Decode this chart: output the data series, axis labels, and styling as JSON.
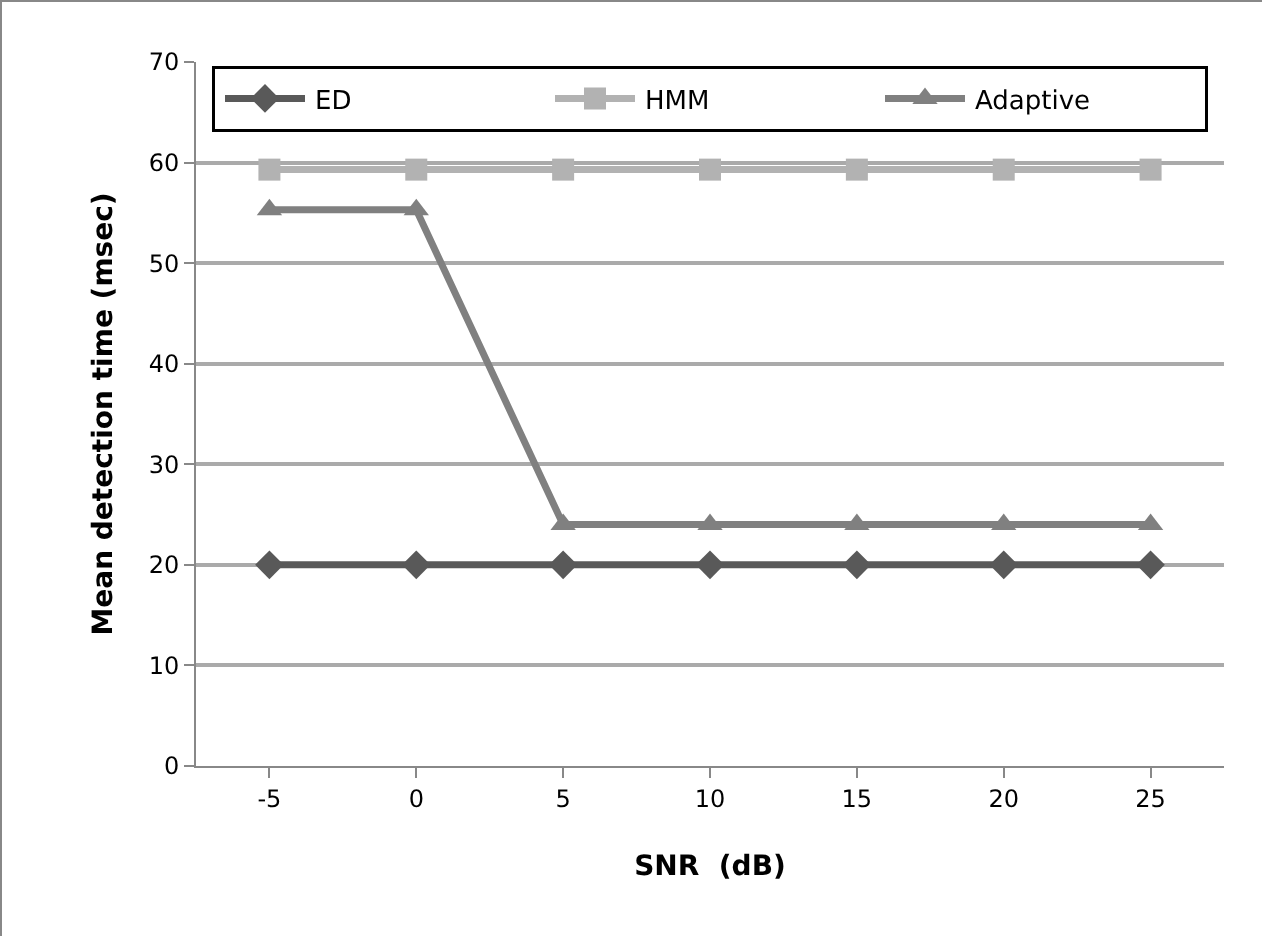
{
  "chart_data": {
    "type": "line",
    "xlabel": "SNR  (dB)",
    "ylabel": "Mean detection time (msec)",
    "categories": [
      "-5",
      "0",
      "5",
      "10",
      "15",
      "20",
      "25"
    ],
    "series": [
      {
        "name": "ED",
        "color": "#595959",
        "marker": "diamond",
        "values": [
          20,
          20,
          20,
          20,
          20,
          20,
          20
        ]
      },
      {
        "name": "HMM",
        "color": "#b2b2b2",
        "marker": "square",
        "values": [
          59.3,
          59.3,
          59.3,
          59.3,
          59.3,
          59.3,
          59.3
        ]
      },
      {
        "name": "Adaptive",
        "color": "#808080",
        "marker": "triangle",
        "values": [
          55.3,
          55.3,
          24,
          24,
          24,
          24,
          24
        ]
      }
    ],
    "ylim": [
      0,
      70
    ],
    "yticks": [
      0,
      10,
      20,
      30,
      40,
      50,
      60,
      70
    ],
    "grid": "y",
    "legend": "top",
    "line_style": "solid"
  }
}
